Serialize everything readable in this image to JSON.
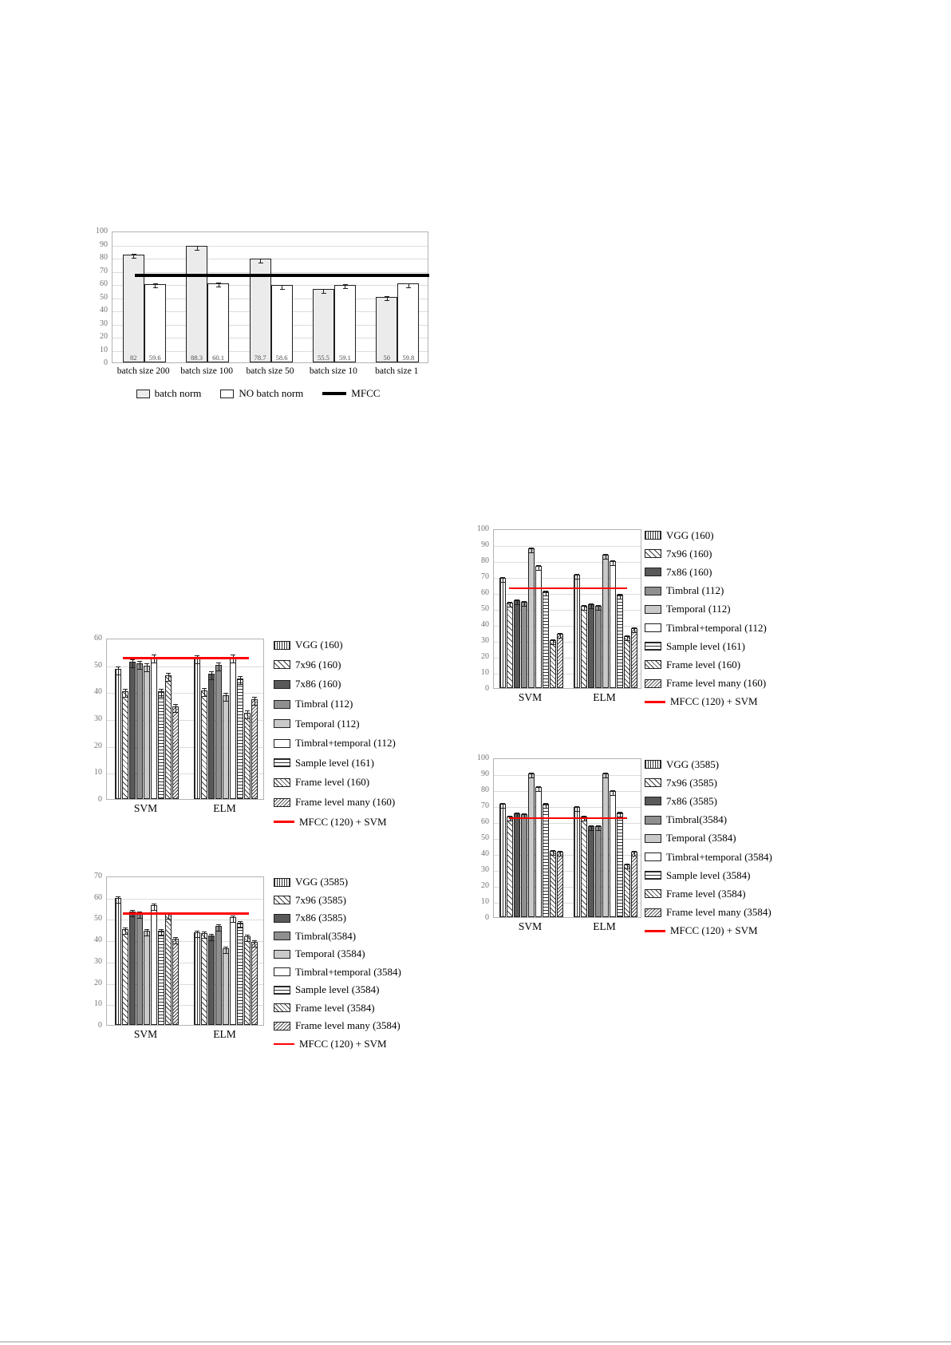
{
  "page": {
    "background": "#ffffff",
    "bottom_rule_color": "#c9c9c9"
  },
  "chart_data": [
    {
      "id": "batch",
      "type": "bar",
      "ylim": [
        0,
        100
      ],
      "ytick_step": 10,
      "grid": true,
      "legend_position": "bottom",
      "show_values": true,
      "categories": [
        "batch size 200",
        "batch size 100",
        "batch size 50",
        "batch size 10",
        "batch size 1"
      ],
      "series": [
        {
          "name": "batch norm",
          "pattern": "solid-pale-gray",
          "values": [
            82,
            88.3,
            78.7,
            55.5,
            50
          ]
        },
        {
          "name": "NO batch norm",
          "pattern": "solid-white",
          "values": [
            59.6,
            60.1,
            58.6,
            59.1,
            59.8
          ]
        }
      ],
      "ref_line": {
        "label": "MFCC",
        "value": 67,
        "color": "#000000"
      }
    },
    {
      "id": "small-100",
      "type": "bar",
      "ylim": [
        0,
        100
      ],
      "ytick_step": 10,
      "grid": true,
      "legend_position": "right",
      "categories": [
        "SVM",
        "ELM"
      ],
      "series": [
        {
          "name": "VGG (160)",
          "pattern": "vertical-lines",
          "values": [
            69,
            71
          ]
        },
        {
          "name": "7x96 (160)",
          "pattern": "diag-sparse",
          "values": [
            53.5,
            51.5
          ]
        },
        {
          "name": "7x86 (160)",
          "pattern": "solid-dark-gray",
          "values": [
            55,
            52.5
          ]
        },
        {
          "name": "Timbral (112)",
          "pattern": "solid-mid-gray",
          "values": [
            54,
            51.5
          ]
        },
        {
          "name": "Temporal (112)",
          "pattern": "solid-light-gray",
          "values": [
            87.5,
            83.5
          ]
        },
        {
          "name": "Timbral+temporal (112)",
          "pattern": "solid-white",
          "values": [
            76.5,
            79.5
          ]
        },
        {
          "name": "Sample level (161)",
          "pattern": "horizontal-lines",
          "values": [
            60.5,
            58.5
          ]
        },
        {
          "name": "Frame level (160)",
          "pattern": "diag-hatch",
          "values": [
            30,
            32.5
          ]
        },
        {
          "name": "Frame level many (160)",
          "pattern": "diag-hatch-dense",
          "values": [
            34,
            37.5
          ]
        }
      ],
      "ref_line": {
        "label": "MFCC (120) + SVM",
        "value": 63.5,
        "color": "#ff0000"
      }
    },
    {
      "id": "small-60",
      "type": "bar",
      "ylim": [
        0,
        60
      ],
      "ytick_step": 10,
      "grid": true,
      "legend_position": "right",
      "categories": [
        "SVM",
        "ELM"
      ],
      "series": [
        {
          "name": "VGG (160)",
          "pattern": "vertical-lines",
          "values": [
            48.5,
            52.5
          ]
        },
        {
          "name": "7x96 (160)",
          "pattern": "diag-sparse",
          "values": [
            40,
            40.5
          ]
        },
        {
          "name": "7x86 (160)",
          "pattern": "solid-dark-gray",
          "values": [
            51,
            46.5
          ]
        },
        {
          "name": "Timbral (112)",
          "pattern": "solid-mid-gray",
          "values": [
            50.5,
            50
          ]
        },
        {
          "name": "Temporal (112)",
          "pattern": "solid-light-gray",
          "values": [
            49.5,
            38.5
          ]
        },
        {
          "name": "Timbral+temporal (112)",
          "pattern": "solid-white",
          "values": [
            53,
            53
          ]
        },
        {
          "name": "Sample level (161)",
          "pattern": "horizontal-lines",
          "values": [
            40,
            45
          ]
        },
        {
          "name": "Frame level (160)",
          "pattern": "diag-hatch",
          "values": [
            46,
            32
          ]
        },
        {
          "name": "Frame level many (160)",
          "pattern": "diag-hatch-dense",
          "values": [
            34.5,
            37
          ]
        }
      ],
      "ref_line": {
        "label": "MFCC (120) + SVM",
        "value": 53,
        "color": "#ff0000"
      }
    },
    {
      "id": "large-100",
      "type": "bar",
      "ylim": [
        0,
        100
      ],
      "ytick_step": 10,
      "grid": true,
      "legend_position": "right",
      "categories": [
        "SVM",
        "ELM"
      ],
      "series": [
        {
          "name": "VGG (3585)",
          "pattern": "vertical-lines",
          "values": [
            71,
            69
          ]
        },
        {
          "name": "7x96 (3585)",
          "pattern": "diag-sparse",
          "values": [
            63,
            63
          ]
        },
        {
          "name": "7x86 (3585)",
          "pattern": "solid-dark-gray",
          "values": [
            65,
            57
          ]
        },
        {
          "name": "Timbral(3584)",
          "pattern": "solid-mid-gray",
          "values": [
            64.5,
            57
          ]
        },
        {
          "name": "Temporal (3584)",
          "pattern": "solid-light-gray",
          "values": [
            90,
            90
          ]
        },
        {
          "name": "Timbral+temporal (3584)",
          "pattern": "solid-white",
          "values": [
            81.5,
            79
          ]
        },
        {
          "name": "Sample level (3584)",
          "pattern": "horizontal-lines",
          "values": [
            71,
            65.5
          ]
        },
        {
          "name": "Frame level (3584)",
          "pattern": "diag-hatch",
          "values": [
            41.5,
            33
          ]
        },
        {
          "name": "Frame level many (3584)",
          "pattern": "diag-hatch-dense",
          "values": [
            41,
            41
          ]
        }
      ],
      "ref_line": {
        "label": "MFCC (120) + SVM",
        "value": 63,
        "color": "#ff0000"
      }
    },
    {
      "id": "large-70",
      "type": "bar",
      "ylim": [
        0,
        70
      ],
      "ytick_step": 10,
      "grid": true,
      "legend_position": "right",
      "categories": [
        "SVM",
        "ELM"
      ],
      "series": [
        {
          "name": "VGG (3585)",
          "pattern": "vertical-lines",
          "values": [
            59.5,
            43.5
          ]
        },
        {
          "name": "7x96 (3585)",
          "pattern": "diag-sparse",
          "values": [
            45,
            43
          ]
        },
        {
          "name": "7x86 (3585)",
          "pattern": "solid-dark-gray",
          "values": [
            53,
            42
          ]
        },
        {
          "name": "Timbral(3584)",
          "pattern": "solid-mid-gray",
          "values": [
            52.5,
            46.5
          ]
        },
        {
          "name": "Temporal (3584)",
          "pattern": "solid-light-gray",
          "values": [
            44,
            36
          ]
        },
        {
          "name": "Timbral+temporal (3584)",
          "pattern": "solid-white",
          "values": [
            56,
            50.5
          ]
        },
        {
          "name": "Sample level (3584)",
          "pattern": "horizontal-lines",
          "values": [
            44,
            48
          ]
        },
        {
          "name": "Frame level (3584)",
          "pattern": "diag-hatch",
          "values": [
            52,
            41.5
          ]
        },
        {
          "name": "Frame level many (3584)",
          "pattern": "diag-hatch-dense",
          "values": [
            40.5,
            39
          ]
        }
      ],
      "ref_line": {
        "label": "MFCC (120) + SVM",
        "value": 53,
        "color": "#ff0000"
      }
    }
  ]
}
